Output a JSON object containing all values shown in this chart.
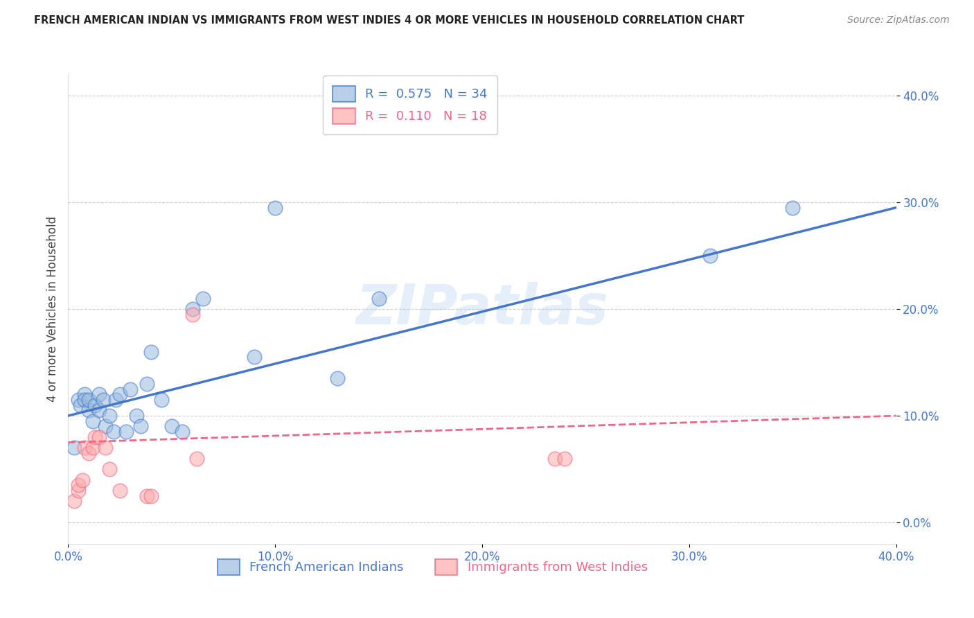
{
  "title": "FRENCH AMERICAN INDIAN VS IMMIGRANTS FROM WEST INDIES 4 OR MORE VEHICLES IN HOUSEHOLD CORRELATION CHART",
  "source": "Source: ZipAtlas.com",
  "xlabel_blue": "French American Indians",
  "xlabel_pink": "Immigrants from West Indies",
  "ylabel": "4 or more Vehicles in Household",
  "xlim": [
    0.0,
    0.4
  ],
  "ylim": [
    -0.02,
    0.42
  ],
  "xticks": [
    0.0,
    0.1,
    0.2,
    0.3,
    0.4
  ],
  "yticks": [
    0.0,
    0.1,
    0.2,
    0.3,
    0.4
  ],
  "xtick_labels": [
    "0.0%",
    "10.0%",
    "20.0%",
    "30.0%",
    "40.0%"
  ],
  "ytick_labels": [
    "0.0%",
    "10.0%",
    "20.0%",
    "30.0%",
    "40.0%"
  ],
  "blue_R": 0.575,
  "blue_N": 34,
  "pink_R": 0.11,
  "pink_N": 18,
  "blue_color": "#99bbdd",
  "pink_color": "#ffaaaa",
  "line_blue": "#4477cc",
  "line_pink": "#ee6688",
  "watermark": "ZIPatlas",
  "blue_scatter_x": [
    0.003,
    0.005,
    0.006,
    0.008,
    0.008,
    0.01,
    0.01,
    0.012,
    0.013,
    0.015,
    0.015,
    0.017,
    0.018,
    0.02,
    0.022,
    0.023,
    0.025,
    0.028,
    0.03,
    0.033,
    0.035,
    0.038,
    0.04,
    0.045,
    0.05,
    0.055,
    0.06,
    0.065,
    0.09,
    0.1,
    0.13,
    0.15,
    0.31,
    0.35
  ],
  "blue_scatter_y": [
    0.07,
    0.115,
    0.11,
    0.12,
    0.115,
    0.105,
    0.115,
    0.095,
    0.11,
    0.105,
    0.12,
    0.115,
    0.09,
    0.1,
    0.085,
    0.115,
    0.12,
    0.085,
    0.125,
    0.1,
    0.09,
    0.13,
    0.16,
    0.115,
    0.09,
    0.085,
    0.2,
    0.21,
    0.155,
    0.295,
    0.135,
    0.21,
    0.25,
    0.295
  ],
  "pink_scatter_x": [
    0.003,
    0.005,
    0.005,
    0.007,
    0.008,
    0.01,
    0.012,
    0.013,
    0.015,
    0.018,
    0.02,
    0.025,
    0.038,
    0.04,
    0.06,
    0.062,
    0.235,
    0.24
  ],
  "pink_scatter_y": [
    0.02,
    0.03,
    0.035,
    0.04,
    0.07,
    0.065,
    0.07,
    0.08,
    0.08,
    0.07,
    0.05,
    0.03,
    0.025,
    0.025,
    0.195,
    0.06,
    0.06,
    0.06
  ],
  "blue_line_x0": 0.0,
  "blue_line_x1": 0.4,
  "blue_line_y0": 0.1,
  "blue_line_y1": 0.295,
  "pink_line_x0": 0.0,
  "pink_line_x1": 0.4,
  "pink_line_y0": 0.075,
  "pink_line_y1": 0.1
}
